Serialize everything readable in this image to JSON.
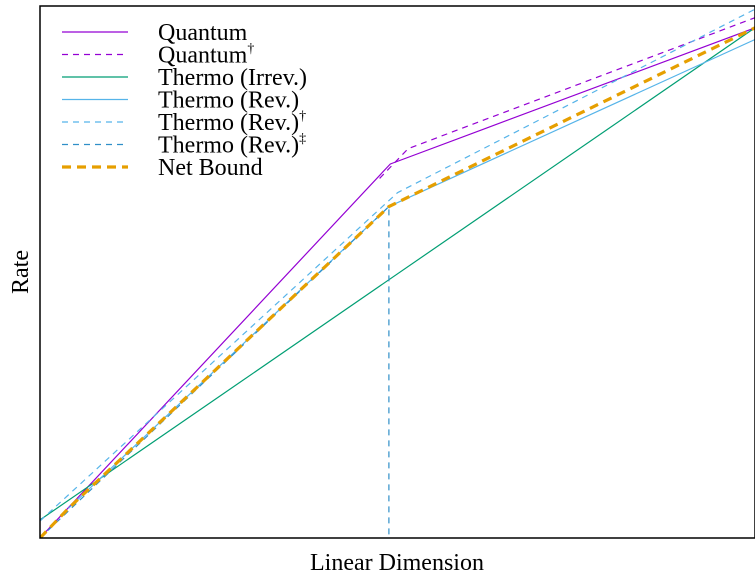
{
  "chart_data": {
    "type": "line",
    "title": "",
    "xlabel": "Linear Dimension",
    "ylabel": "Rate",
    "xlim": [
      0,
      100
    ],
    "ylim": [
      0,
      100
    ],
    "x_ticks_labeled": false,
    "y_ticks_labeled": false,
    "grid": false,
    "legend_position": "top-left",
    "series": [
      {
        "name": "Quantum",
        "color": "#9400D3",
        "dash": "solid",
        "width": 1.2,
        "points": [
          [
            0,
            0
          ],
          [
            49,
            70.3
          ],
          [
            100,
            95.9
          ]
        ]
      },
      {
        "name": "Quantum",
        "sup": "†",
        "color": "#9400D3",
        "dash": "dashed",
        "width": 1.2,
        "points": [
          [
            47.5,
            67.6
          ],
          [
            51.5,
            73.2
          ],
          [
            100,
            97.8
          ]
        ]
      },
      {
        "name": "Thermo (Irrev.)",
        "color": "#009E73",
        "dash": "solid",
        "width": 1.2,
        "points": [
          [
            0,
            3.4
          ],
          [
            100,
            95.9
          ]
        ]
      },
      {
        "name": "Thermo (Rev.)",
        "color": "#56B4E9",
        "dash": "solid",
        "width": 1.2,
        "points": [
          [
            4,
            5.6
          ],
          [
            48.8,
            62.3
          ],
          [
            100,
            93.7
          ]
        ]
      },
      {
        "name": "Thermo (Rev.)",
        "sup": "†",
        "color": "#56B4E9",
        "dash": "dashed",
        "width": 1.2,
        "points": [
          [
            0,
            3.2
          ],
          [
            50,
            64.9
          ],
          [
            100,
            99.4
          ]
        ]
      },
      {
        "name": "Thermo (Rev.)",
        "sup": "‡",
        "color": "#2F8FC8",
        "dash": "dashed",
        "width": 1.2,
        "points": [
          [
            0,
            0
          ],
          [
            48.8,
            62.3
          ],
          [
            48.8,
            0
          ]
        ]
      },
      {
        "name": "Net Bound",
        "color": "#E69F00",
        "dash": "thick-dashed",
        "width": 3.2,
        "points": [
          [
            0,
            0
          ],
          [
            4,
            5.6
          ],
          [
            48.8,
            62.3
          ],
          [
            100,
            95.9
          ]
        ]
      }
    ]
  }
}
